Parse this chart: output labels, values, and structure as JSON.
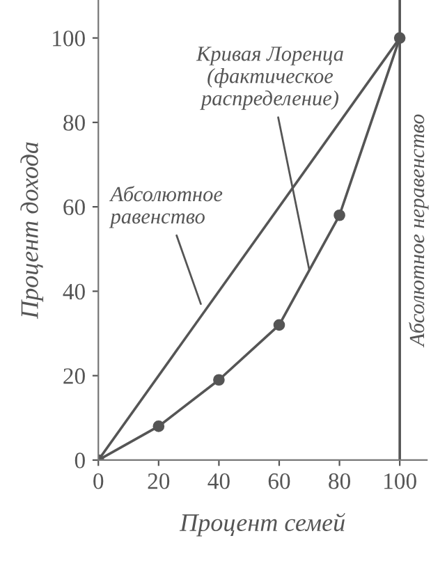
{
  "chart_data": {
    "type": "line",
    "xlabel": "Процент семей",
    "ylabel": "Процент дохода",
    "x": [
      0,
      20,
      40,
      60,
      80,
      100
    ],
    "series": [
      {
        "color": "#555555",
        "values": [
          0,
          8,
          19,
          32,
          58,
          100
        ],
        "marker": "circle"
      },
      {
        "color": "#555555",
        "x": [
          0,
          100
        ],
        "values": [
          0,
          100
        ],
        "marker": "none"
      }
    ],
    "xlim": [
      0,
      109
    ],
    "ylim": [
      0,
      109
    ],
    "xticks": [
      0,
      20,
      40,
      60,
      80,
      100
    ],
    "yticks": [
      0,
      20,
      40,
      60,
      80,
      100
    ],
    "grid": false,
    "legend": false,
    "line_style": "solid",
    "ref_lines": [
      {
        "axis": "x",
        "value": 100,
        "label": "Абсолютное неравенство",
        "color": "#555555"
      }
    ],
    "annotations": [
      {
        "text": "Кривая Лоренца\n(фактическое\nраспределение)",
        "x": 70,
        "y": 45
      },
      {
        "text": "Абсолютное\nравенство",
        "x": 34,
        "y": 37
      }
    ]
  }
}
